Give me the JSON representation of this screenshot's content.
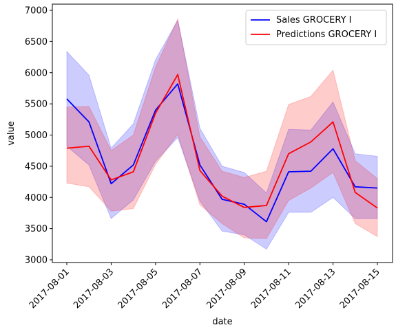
{
  "chart_data": {
    "type": "line",
    "xlabel": "date",
    "ylabel": "value",
    "x": [
      "2017-08-01",
      "2017-08-02",
      "2017-08-03",
      "2017-08-04",
      "2017-08-05",
      "2017-08-06",
      "2017-08-07",
      "2017-08-08",
      "2017-08-09",
      "2017-08-10",
      "2017-08-11",
      "2017-08-12",
      "2017-08-13",
      "2017-08-14",
      "2017-08-15"
    ],
    "xticks": [
      "2017-08-01",
      "2017-08-03",
      "2017-08-05",
      "2017-08-07",
      "2017-08-09",
      "2017-08-11",
      "2017-08-13",
      "2017-08-15"
    ],
    "ylim": [
      3000,
      7000
    ],
    "yticks": [
      3000,
      3500,
      4000,
      4500,
      5000,
      5500,
      6000,
      6500,
      7000
    ],
    "grid": false,
    "legend_position": "upper right",
    "series": [
      {
        "name": "Sales GROCERY I",
        "color": "#0000ff",
        "values": [
          5580,
          5210,
          4220,
          4520,
          5400,
          5820,
          4520,
          3970,
          3890,
          3610,
          4410,
          4420,
          4780,
          4170,
          4150
        ],
        "band_upper": [
          6340,
          5960,
          4790,
          5180,
          6210,
          6840,
          5110,
          4500,
          4400,
          4070,
          5090,
          5080,
          5530,
          4700,
          4660
        ],
        "band_lower": [
          4820,
          4520,
          3660,
          3960,
          4580,
          4960,
          3940,
          3460,
          3400,
          3170,
          3760,
          3760,
          4000,
          3660,
          3660
        ]
      },
      {
        "name": "Predictions GROCERY I",
        "color": "#ff0000",
        "values": [
          4790,
          4820,
          4280,
          4410,
          5350,
          5970,
          4430,
          4020,
          3840,
          3870,
          4700,
          4890,
          5210,
          4080,
          3830
        ],
        "band_upper": [
          5450,
          5460,
          4750,
          5000,
          6090,
          6860,
          4970,
          4420,
          4320,
          4420,
          5490,
          5620,
          6040,
          4590,
          4300
        ],
        "band_lower": [
          4230,
          4170,
          3780,
          3820,
          4530,
          5010,
          3880,
          3580,
          3350,
          3340,
          3950,
          4150,
          4400,
          3580,
          3370
        ]
      }
    ]
  }
}
